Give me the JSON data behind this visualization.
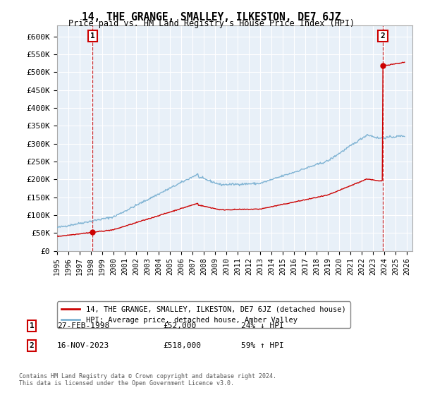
{
  "title": "14, THE GRANGE, SMALLEY, ILKESTON, DE7 6JZ",
  "subtitle": "Price paid vs. HM Land Registry's House Price Index (HPI)",
  "title_fontsize": 10.5,
  "subtitle_fontsize": 8.5,
  "ylabel_ticks": [
    "£0",
    "£50K",
    "£100K",
    "£150K",
    "£200K",
    "£250K",
    "£300K",
    "£350K",
    "£400K",
    "£450K",
    "£500K",
    "£550K",
    "£600K"
  ],
  "ytick_values": [
    0,
    50000,
    100000,
    150000,
    200000,
    250000,
    300000,
    350000,
    400000,
    450000,
    500000,
    550000,
    600000
  ],
  "ylim": [
    0,
    630000
  ],
  "xlim_start": 1995.0,
  "xlim_end": 2026.5,
  "sale1_year": 1998.15,
  "sale1_price": 52000,
  "sale1_label": "1",
  "sale1_date": "27-FEB-1998",
  "sale1_price_str": "£52,000",
  "sale1_hpi": "24% ↓ HPI",
  "sale2_year": 2023.88,
  "sale2_price": 518000,
  "sale2_label": "2",
  "sale2_date": "16-NOV-2023",
  "sale2_price_str": "£518,000",
  "sale2_hpi": "59% ↑ HPI",
  "property_color": "#cc0000",
  "hpi_color": "#7fb3d3",
  "vline_color": "#cc0000",
  "legend_label1": "14, THE GRANGE, SMALLEY, ILKESTON, DE7 6JZ (detached house)",
  "legend_label2": "HPI: Average price, detached house, Amber Valley",
  "footer1": "Contains HM Land Registry data © Crown copyright and database right 2024.",
  "footer2": "This data is licensed under the Open Government Licence v3.0.",
  "bg_color": "#ffffff",
  "chart_bg": "#e8f0f8",
  "grid_color": "#ffffff",
  "xtick_years": [
    1995,
    1996,
    1997,
    1998,
    1999,
    2000,
    2001,
    2002,
    2003,
    2004,
    2005,
    2006,
    2007,
    2008,
    2009,
    2010,
    2011,
    2012,
    2013,
    2014,
    2015,
    2016,
    2017,
    2018,
    2019,
    2020,
    2021,
    2022,
    2023,
    2024,
    2025,
    2026
  ]
}
